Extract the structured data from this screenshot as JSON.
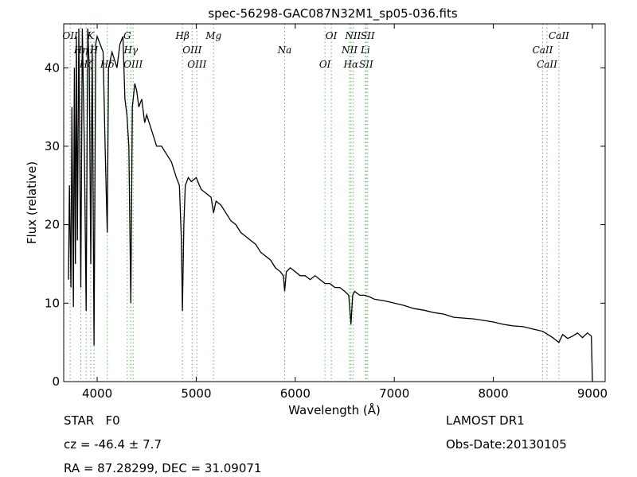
{
  "chart_data": {
    "type": "line",
    "title": "spec-56298-GAC087N32M1_sp05-036.fits",
    "x_label": "Wavelength (Å)",
    "y_label": "Flux (relative)",
    "xlim": [
      3662,
      9129
    ],
    "ylim": [
      0,
      45.6
    ],
    "xticks": [
      4000,
      5000,
      6000,
      7000,
      8000,
      9000
    ],
    "yticks": [
      0,
      10,
      20,
      30,
      40
    ],
    "grid": false,
    "series": [
      {
        "name": "flux",
        "color": "#000000",
        "x": [
          3710,
          3720,
          3735,
          3745,
          3760,
          3770,
          3780,
          3790,
          3800,
          3815,
          3835,
          3850,
          3870,
          3889,
          3905,
          3920,
          3935,
          3950,
          3968,
          3985,
          4000,
          4030,
          4060,
          4080,
          4102,
          4115,
          4150,
          4200,
          4230,
          4260,
          4280,
          4300,
          4320,
          4340,
          4355,
          4380,
          4400,
          4420,
          4450,
          4480,
          4500,
          4550,
          4600,
          4650,
          4700,
          4750,
          4800,
          4830,
          4850,
          4861,
          4875,
          4890,
          4920,
          4950,
          5000,
          5050,
          5100,
          5150,
          5175,
          5200,
          5250,
          5300,
          5350,
          5400,
          5450,
          5500,
          5550,
          5600,
          5650,
          5700,
          5750,
          5800,
          5850,
          5880,
          5893,
          5910,
          5950,
          6000,
          6050,
          6100,
          6150,
          6200,
          6250,
          6300,
          6350,
          6400,
          6450,
          6500,
          6540,
          6563,
          6580,
          6600,
          6650,
          6700,
          6750,
          6800,
          6900,
          7000,
          7100,
          7200,
          7300,
          7400,
          7500,
          7600,
          7700,
          7800,
          7900,
          8000,
          8100,
          8200,
          8300,
          8400,
          8500,
          8550,
          8600,
          8662,
          8700,
          8750,
          8800,
          8850,
          8900,
          8950,
          8990,
          9000
        ],
        "values": [
          13,
          25,
          12,
          35,
          9.5,
          40,
          15,
          44,
          18,
          45,
          12,
          45,
          30,
          9,
          45,
          40,
          15,
          43,
          4.6,
          43,
          44,
          43,
          42,
          30,
          19,
          40,
          42,
          40,
          43,
          44,
          36,
          34,
          30,
          10,
          35,
          38,
          37,
          35,
          36,
          33,
          34,
          32,
          30,
          30,
          29,
          28,
          26,
          25,
          18,
          9,
          20,
          25,
          26,
          25.5,
          26,
          24.5,
          24,
          23.5,
          21.5,
          23,
          22.5,
          21.5,
          20.5,
          20,
          19,
          18.5,
          18,
          17.5,
          16.5,
          16,
          15.5,
          14.5,
          14,
          13.5,
          11.5,
          14,
          14.5,
          14,
          13.5,
          13.5,
          13,
          13.5,
          13,
          12.5,
          12.5,
          12,
          12,
          11.5,
          11,
          7.3,
          11,
          11.5,
          11,
          11,
          10.8,
          10.5,
          10.3,
          10,
          9.7,
          9.3,
          9.1,
          8.8,
          8.6,
          8.2,
          8.1,
          8,
          7.8,
          7.6,
          7.3,
          7.1,
          7,
          6.7,
          6.4,
          6,
          5.6,
          5,
          6,
          5.5,
          5.8,
          6.2,
          5.6,
          6.2,
          5.8,
          0
        ]
      }
    ],
    "line_markers": {
      "color": "#5cb85c",
      "items": [
        {
          "label": "OII",
          "wavelength": 3727
        },
        {
          "label": "Hη",
          "wavelength": 3835
        },
        {
          "label": "Hζ",
          "wavelength": 3889
        },
        {
          "label": "K",
          "wavelength": 3934
        },
        {
          "label": "H",
          "wavelength": 3968
        },
        {
          "label": "Hδ",
          "wavelength": 4102
        },
        {
          "label": "G",
          "wavelength": 4304
        },
        {
          "label": "Hγ",
          "wavelength": 4340
        },
        {
          "label": "OIII",
          "wavelength": 4363
        },
        {
          "label": "Hβ",
          "wavelength": 4861
        },
        {
          "label": "OIII",
          "wavelength": 4959
        },
        {
          "label": "OIII",
          "wavelength": 5007
        },
        {
          "label": "Mg",
          "wavelength": 5175
        },
        {
          "label": "Na",
          "wavelength": 5893
        },
        {
          "label": "OI",
          "wavelength": 6300
        },
        {
          "label": "OI",
          "wavelength": 6364
        },
        {
          "label": "NII",
          "wavelength": 6548
        },
        {
          "label": "Hα",
          "wavelength": 6563
        },
        {
          "label": "NII",
          "wavelength": 6583
        },
        {
          "label": "Li",
          "wavelength": 6708
        },
        {
          "label": "SII",
          "wavelength": 6716
        },
        {
          "label": "SII",
          "wavelength": 6731
        },
        {
          "label": "CaII",
          "wavelength": 8498
        },
        {
          "label": "CaII",
          "wavelength": 8542
        },
        {
          "label": "CaII",
          "wavelength": 8662
        }
      ]
    },
    "annotations": {
      "class": "STAR   F0",
      "cz": "cz = -46.4 ± 7.7",
      "coords": "RA = 87.28299, DEC = 31.09071",
      "survey": "LAMOST DR1",
      "date": "Obs-Date:20130105"
    }
  }
}
